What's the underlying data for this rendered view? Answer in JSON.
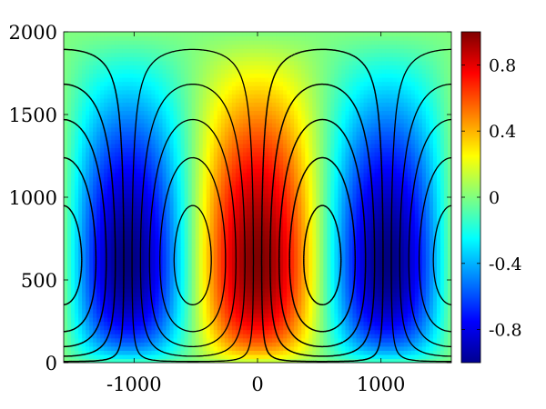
{
  "chart_data": {
    "type": "heatmap",
    "title": "",
    "xlabel": "",
    "ylabel": "",
    "xlim": [
      -1570,
      1570
    ],
    "ylim": [
      0,
      2000
    ],
    "x_ticks": [
      -1000,
      0,
      1000
    ],
    "x_tick_labels": [
      "-1000",
      "0",
      "1000"
    ],
    "y_ticks": [
      0,
      500,
      1000,
      1500,
      2000
    ],
    "y_tick_labels": [
      "0",
      "500",
      "1000",
      "1500",
      "2000"
    ],
    "field": {
      "description_of_values": "normalized amplitude, range -1 to 1",
      "x_period": 2100,
      "x_phase_peak": 0,
      "vertical_maximum_y": 620,
      "top_value_at_y_2000": 0
    },
    "colorbar": {
      "colormap": "jet",
      "range": [
        -1,
        1
      ],
      "ticks": [
        -0.8,
        -0.4,
        0,
        0.4,
        0.8
      ],
      "tick_labels": [
        "-0.8",
        "-0.4",
        "0",
        "0.4",
        "0.8"
      ]
    },
    "contours": {
      "positive_style": "solid",
      "negative_style": "dotted",
      "color": "#000000",
      "levels": [
        -0.9,
        -0.7,
        -0.5,
        -0.3,
        -0.1,
        0.1,
        0.3,
        0.5,
        0.7,
        0.9
      ],
      "second_field_x_peaks": [
        -525,
        1575
      ],
      "second_field_x_troughs": [
        525,
        -1575
      ]
    },
    "grid": false
  }
}
